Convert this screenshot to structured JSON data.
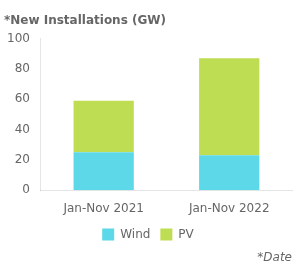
{
  "chart_data": {
    "type": "bar",
    "title": "*New Installations (GW)",
    "categories": [
      "Jan-Nov 2021",
      "Jan-Nov 2022"
    ],
    "series": [
      {
        "name": "Wind",
        "color": "#5DD8E8",
        "values": [
          25,
          23
        ]
      },
      {
        "name": "PV",
        "color": "#BFDD52",
        "values": [
          34,
          64
        ]
      }
    ],
    "stacked": true,
    "ylim": [
      0,
      100
    ],
    "yticks": [
      0,
      20,
      40,
      60,
      80,
      100
    ],
    "grid": false,
    "legend": "bottom",
    "annotation": "*Date"
  }
}
